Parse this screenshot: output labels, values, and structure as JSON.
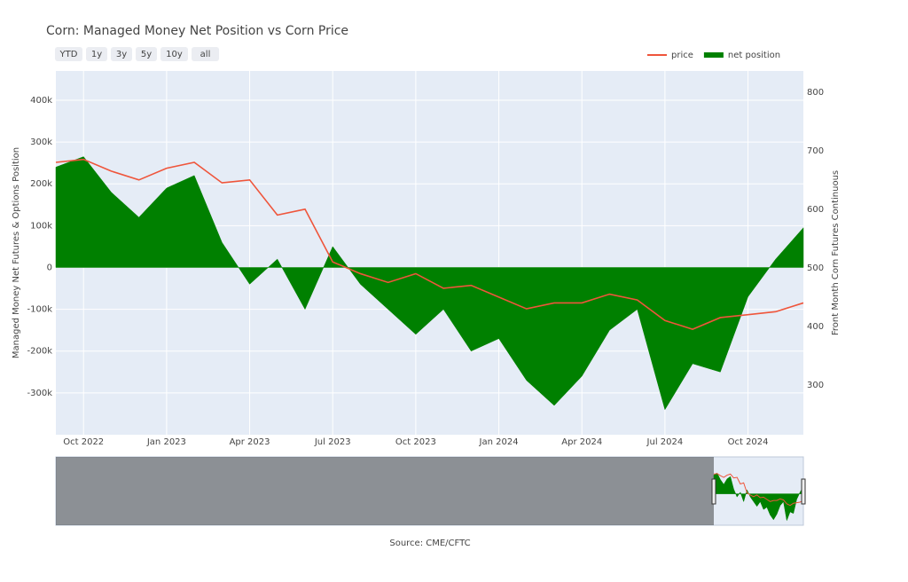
{
  "chart_data": {
    "type": "area_line",
    "title": "Corn: Managed Money Net Position vs Corn Price",
    "buttons": [
      "YTD",
      "1y",
      "3y",
      "5y",
      "10y",
      "all"
    ],
    "y_label": "Managed Money Net Futures & Options Position",
    "y2_label": "Front Month Corn Futures Continuous",
    "source": "Source: CME/CFTC",
    "legend": "top-right",
    "grid": true,
    "x": [
      "2022-09",
      "2022-10",
      "2022-11",
      "2022-12",
      "2023-01",
      "2023-02",
      "2023-03",
      "2023-04",
      "2023-05",
      "2023-06",
      "2023-07",
      "2023-08",
      "2023-09",
      "2023-10",
      "2023-11",
      "2023-12",
      "2024-01",
      "2024-02",
      "2024-03",
      "2024-04",
      "2024-05",
      "2024-06",
      "2024-07",
      "2024-08",
      "2024-09",
      "2024-10",
      "2024-11",
      "2024-12"
    ],
    "xlim": [
      "2022-09",
      "2024-12"
    ],
    "xticks": [
      {
        "value": "2022-10",
        "label": "Oct 2022"
      },
      {
        "value": "2023-01",
        "label": "Jan 2023"
      },
      {
        "value": "2023-04",
        "label": "Apr 2023"
      },
      {
        "value": "2023-07",
        "label": "Jul 2023"
      },
      {
        "value": "2023-10",
        "label": "Oct 2023"
      },
      {
        "value": "2024-01",
        "label": "Jan 2024"
      },
      {
        "value": "2024-04",
        "label": "Apr 2024"
      },
      {
        "value": "2024-07",
        "label": "Jul 2024"
      },
      {
        "value": "2024-10",
        "label": "Oct 2024"
      }
    ],
    "ylim": [
      -400000,
      470000
    ],
    "yticks": [
      {
        "value": -300000,
        "label": "-300k"
      },
      {
        "value": -200000,
        "label": "-200k"
      },
      {
        "value": -100000,
        "label": "-100k"
      },
      0,
      {
        "value": 100000,
        "label": "100k"
      },
      {
        "value": 200000,
        "label": "200k"
      },
      {
        "value": 300000,
        "label": "300k"
      },
      {
        "value": 400000,
        "label": "400k"
      }
    ],
    "y2lim": [
      215,
      836
    ],
    "y2ticks": [
      300,
      400,
      500,
      600,
      700,
      800
    ],
    "series": [
      {
        "name": "price",
        "color": "#ef553b",
        "axis": "y2",
        "kind": "line",
        "values": [
          680,
          685,
          665,
          650,
          670,
          680,
          645,
          650,
          590,
          600,
          510,
          490,
          475,
          490,
          465,
          470,
          450,
          430,
          440,
          440,
          455,
          445,
          410,
          395,
          415,
          420,
          425,
          440
        ]
      },
      {
        "name": "net position",
        "color": "#008000",
        "axis": "y",
        "kind": "area",
        "values": [
          240000,
          265000,
          180000,
          120000,
          190000,
          220000,
          60000,
          -40000,
          20000,
          -100000,
          50000,
          -40000,
          -100000,
          -160000,
          -100000,
          -200000,
          -170000,
          -270000,
          -330000,
          -260000,
          -150000,
          -100000,
          -340000,
          -230000,
          -250000,
          -70000,
          20000,
          95000
        ]
      }
    ]
  }
}
